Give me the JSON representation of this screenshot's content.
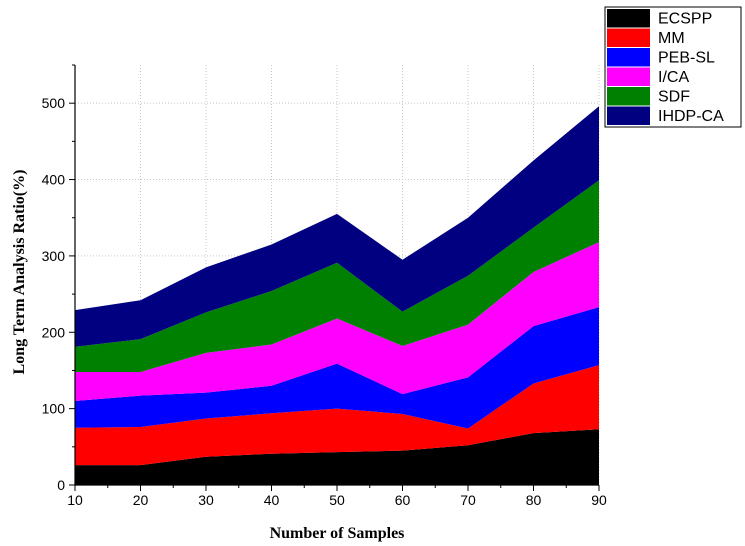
{
  "chart_data": {
    "type": "area",
    "stacked": true,
    "title": "",
    "xlabel": "Number of Samples",
    "ylabel": "Long Term  Analysis Ratio(%)",
    "x": [
      10,
      20,
      30,
      40,
      50,
      60,
      70,
      80,
      90
    ],
    "xlim": [
      10,
      90
    ],
    "ylim": [
      0,
      550
    ],
    "xticks": [
      "10",
      "20",
      "30",
      "40",
      "50",
      "60",
      "70",
      "80",
      "90"
    ],
    "yticks": [
      "0",
      "100",
      "200",
      "300",
      "400",
      "500"
    ],
    "grid": true,
    "legend_position": "top-right",
    "series": [
      {
        "name": "ECSPP",
        "color": "#000000",
        "values": [
          26,
          26,
          37,
          41,
          43,
          45,
          52,
          68,
          73
        ]
      },
      {
        "name": "MM",
        "color": "#ff0000",
        "values": [
          49,
          50,
          50,
          53,
          57,
          48,
          22,
          65,
          84
        ]
      },
      {
        "name": "PEB-SL",
        "color": "#0000ff",
        "values": [
          35,
          41,
          34,
          36,
          59,
          26,
          67,
          75,
          76
        ]
      },
      {
        "name": "I/CA",
        "color": "#ff00ff",
        "values": [
          38,
          31,
          52,
          54,
          59,
          63,
          69,
          71,
          85
        ]
      },
      {
        "name": "SDF",
        "color": "#008000",
        "values": [
          33,
          43,
          53,
          70,
          73,
          45,
          64,
          58,
          81
        ]
      },
      {
        "name": "IHDP-CA",
        "color": "#000080",
        "values": [
          48,
          51,
          59,
          61,
          64,
          68,
          76,
          88,
          97
        ]
      }
    ]
  }
}
